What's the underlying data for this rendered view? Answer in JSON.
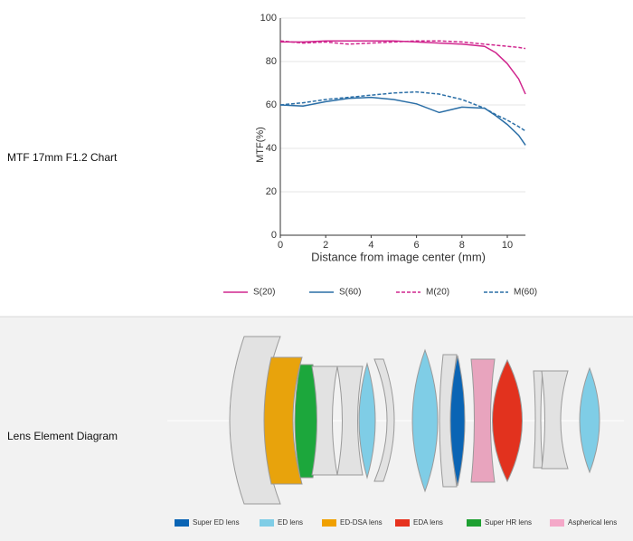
{
  "sections": {
    "mtf_label": "MTF 17mm F1.2 Chart",
    "lens_label": "Lens Element Diagram"
  },
  "chart_data": {
    "type": "line",
    "x_label": "Distance from image center (mm)",
    "y_label": "MTF(%)",
    "x": [
      0,
      1,
      2,
      3,
      4,
      5,
      6,
      7,
      8,
      9,
      9.5,
      10,
      10.5,
      10.8
    ],
    "series": [
      {
        "name": "S(20)",
        "color": "#d0268e",
        "dashed": false,
        "values": [
          89,
          89,
          89.5,
          89.5,
          89.5,
          89.5,
          89,
          88.5,
          88,
          87,
          84,
          79,
          72,
          65
        ]
      },
      {
        "name": "S(60)",
        "color": "#2a6ea6",
        "dashed": false,
        "values": [
          60,
          59.5,
          61.5,
          63,
          63.5,
          62.5,
          60.5,
          56.5,
          59,
          58.5,
          55,
          51,
          46,
          41.5
        ]
      },
      {
        "name": "M(20)",
        "color": "#d0268e",
        "dashed": true,
        "values": [
          89.5,
          88.5,
          89,
          88,
          88.5,
          89,
          89.5,
          89.5,
          89,
          88,
          87.5,
          87,
          86.5,
          86
        ]
      },
      {
        "name": "M(60)",
        "color": "#2a6ea6",
        "dashed": true,
        "values": [
          60,
          61,
          62.5,
          63.5,
          64.5,
          65.5,
          66,
          65,
          62.5,
          58.5,
          55.5,
          53,
          50,
          48
        ]
      }
    ],
    "xlim": [
      0,
      10.8
    ],
    "xticks": [
      0,
      2,
      4,
      6,
      8,
      10
    ],
    "ylim": [
      0,
      100
    ],
    "yticks": [
      0,
      20,
      40,
      60,
      80,
      100
    ],
    "grid": true
  },
  "lens_legend": [
    {
      "label": "Super ED lens"
    },
    {
      "label": "ED lens"
    },
    {
      "label": "ED-DSA lens"
    },
    {
      "label": "EDA lens"
    },
    {
      "label": "Super HR lens"
    },
    {
      "label": "Aspherical lens"
    }
  ]
}
